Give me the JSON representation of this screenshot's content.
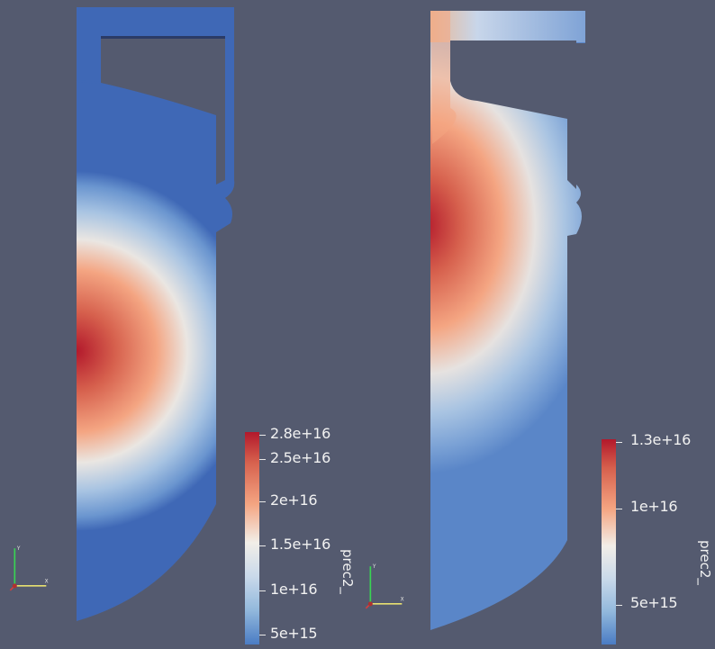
{
  "left_plot": {
    "colorbar": {
      "title": "prec2_",
      "ticks": [
        "2.8e+16",
        "2.5e+16",
        "2e+16",
        "1.5e+16",
        "1e+16",
        "5e+15"
      ]
    }
  },
  "right_plot": {
    "colorbar": {
      "title": "prec2_",
      "ticks": [
        "1.3e+16",
        "1e+16",
        "5e+15"
      ]
    }
  },
  "colors": {
    "background": "#545a6f",
    "high": "#b2182b",
    "mid": "#f2eee8",
    "low": "#3a62b0"
  },
  "icons": [
    "orientation-axes-icon",
    "orientation-axes-icon"
  ]
}
